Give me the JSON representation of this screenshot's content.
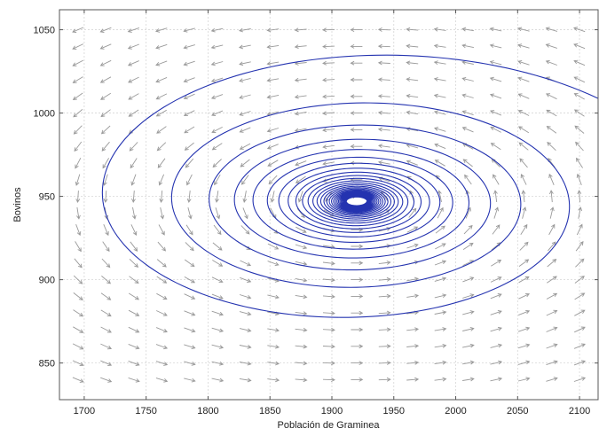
{
  "chart_data": {
    "type": "phase-portrait",
    "title": "",
    "xlabel": "Población de Graminea",
    "ylabel": "Bovinos",
    "xlim": [
      1680,
      2115
    ],
    "ylim": [
      828,
      1062
    ],
    "xticks": [
      1700,
      1750,
      1800,
      1850,
      1900,
      1950,
      2000,
      2050,
      2100
    ],
    "yticks": [
      850,
      900,
      950,
      1000,
      1050
    ],
    "grid": true,
    "equilibrium": {
      "x": 1920,
      "y": 947
    },
    "trajectory": {
      "name": "",
      "type": "spiral",
      "outer_semi_axes": [
        300,
        115
      ],
      "inner_semi_axes": [
        8,
        2.5
      ],
      "turns": 30,
      "color": "#2433b0"
    },
    "vector_field": {
      "x_start": 1695,
      "x_step": 22.5,
      "x_count": 19,
      "y_start": 840,
      "y_step": 10,
      "y_count": 22,
      "color": "#9a9a9a"
    },
    "frame_color": "#555555",
    "grid_color": "#d6d6d6"
  }
}
